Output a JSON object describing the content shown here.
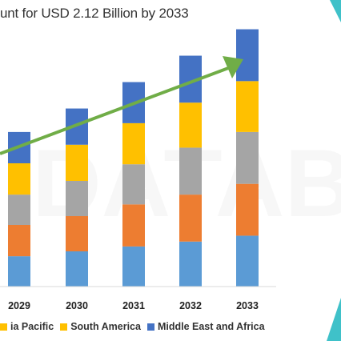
{
  "chart_data": {
    "type": "bar",
    "stacked": true,
    "title": "unt for USD 2.12 Billion by 2033",
    "title_partial_top": "... .. ..... .. ...",
    "watermark": "DATABR",
    "categories": [
      "2029",
      "2030",
      "2031",
      "2032",
      "2033"
    ],
    "series": [
      {
        "name": "",
        "color": "#5b9bd5",
        "values": [
          31,
          36,
          41,
          46,
          52
        ]
      },
      {
        "name": "",
        "color": "#ed7d31",
        "values": [
          32,
          36,
          43,
          48,
          53
        ]
      },
      {
        "name": "",
        "color": "#a5a5a5",
        "values": [
          31,
          36,
          41,
          48,
          53
        ]
      },
      {
        "name": "Asia Pacific",
        "color": "#ffc000",
        "values": [
          32,
          37,
          42,
          46,
          52
        ]
      },
      {
        "name": "South America",
        "color": "#ffc000",
        "values": [
          0,
          0,
          0,
          0,
          0
        ]
      },
      {
        "name": "Middle East and Africa",
        "color": "#4472c4",
        "values": [
          32,
          37,
          42,
          48,
          53
        ]
      }
    ],
    "legend_visible": [
      "ia Pacific",
      "South America",
      "Middle East and Africa"
    ],
    "legend_colors": [
      "#ffc000",
      "#ffc000",
      "#4472c4"
    ],
    "ylim": [
      0,
      270
    ],
    "grid": false,
    "legend_position": "bottom",
    "trend_arrow_color": "#70ad47",
    "accent_color": "#3fc1c9"
  }
}
